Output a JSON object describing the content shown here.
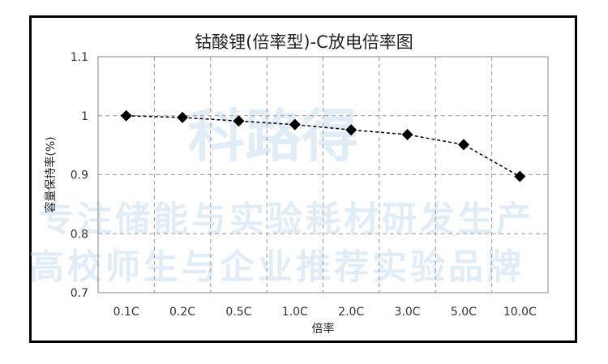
{
  "watermark": {
    "line1": "科路得",
    "line2": "专注储能与实验耗材研发生产",
    "line3": "高校师生与企业推荐实验品牌"
  },
  "chart_data": {
    "type": "line",
    "title": "钴酸锂(倍率型)-C放电倍率图",
    "xlabel": "倍率",
    "ylabel": "容量保持率(%)",
    "categories": [
      "0.1C",
      "0.2C",
      "0.5C",
      "1.0C",
      "2.0C",
      "3.0C",
      "5.0C",
      "10.0C"
    ],
    "series": [
      {
        "values": [
          1.0,
          0.997,
          0.991,
          0.985,
          0.976,
          0.968,
          0.951,
          0.897
        ]
      }
    ],
    "ylim": [
      0.7,
      1.1
    ],
    "yticks": [
      0.7,
      0.8,
      0.9,
      1,
      1.1
    ],
    "ytick_labels": [
      "0.7",
      "0.8",
      "0.9",
      "1",
      "1.1"
    ],
    "grid": true,
    "legend": "none",
    "colors": {
      "series": "#000000",
      "grid": "#999999"
    },
    "marker": "diamond",
    "line_style": "dashed"
  }
}
